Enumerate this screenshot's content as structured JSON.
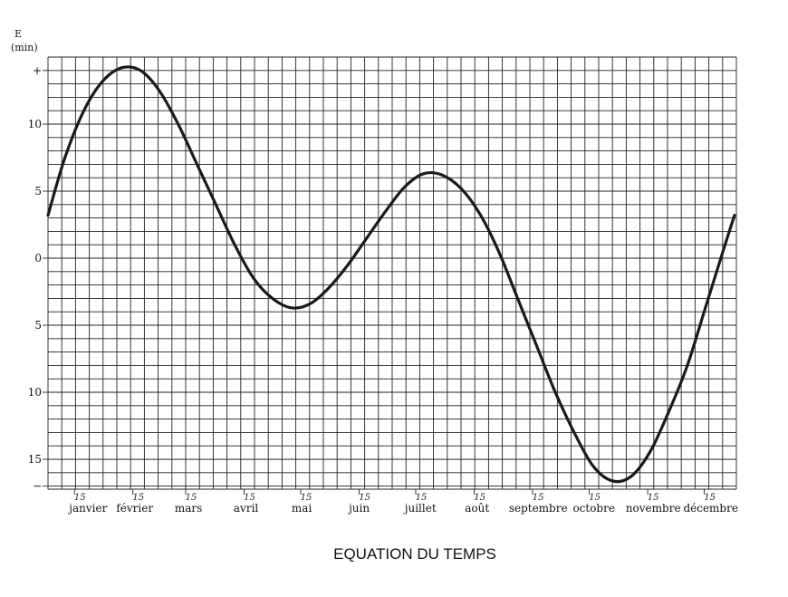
{
  "chart_data": {
    "type": "line",
    "title": "EQUATION DU TEMPS",
    "ylabel": "E",
    "yunit": "(min)",
    "x_tick_labels": [
      "janvier",
      "février",
      "mars",
      "avril",
      "mai",
      "juin",
      "juillet",
      "août",
      "septembre",
      "octobre",
      "novembre",
      "décembre"
    ],
    "fifteen_label": "15",
    "y_tick_labels": [
      "+",
      "10",
      "5",
      "0",
      "5",
      "10",
      "15",
      "−"
    ],
    "y_tick_values": [
      14,
      10,
      5,
      0,
      -5,
      -10,
      -15,
      -17
    ],
    "ylim": [
      -17,
      14.5
    ],
    "xlim": [
      1,
      366
    ],
    "grid": true,
    "series": [
      {
        "x": [
          1,
          10,
          20,
          30,
          40,
          50,
          60,
          70,
          80,
          90,
          100,
          110,
          120,
          130,
          140,
          150,
          160,
          170,
          180,
          190,
          200,
          210,
          220,
          230,
          240,
          250,
          260,
          270,
          280,
          290,
          300,
          310,
          320,
          330,
          340,
          350,
          360,
          365
        ],
        "y": [
          3.2,
          7.5,
          11.0,
          13.2,
          14.2,
          14.0,
          12.5,
          10.0,
          7.0,
          4.0,
          1.0,
          -1.5,
          -3.0,
          -3.7,
          -3.4,
          -2.2,
          -0.5,
          1.5,
          3.5,
          5.3,
          6.3,
          6.2,
          5.2,
          3.3,
          0.5,
          -3.0,
          -6.5,
          -10.0,
          -13.0,
          -15.5,
          -16.6,
          -16.3,
          -14.5,
          -11.5,
          -8.0,
          -3.5,
          1.0,
          3.2
        ]
      }
    ]
  }
}
